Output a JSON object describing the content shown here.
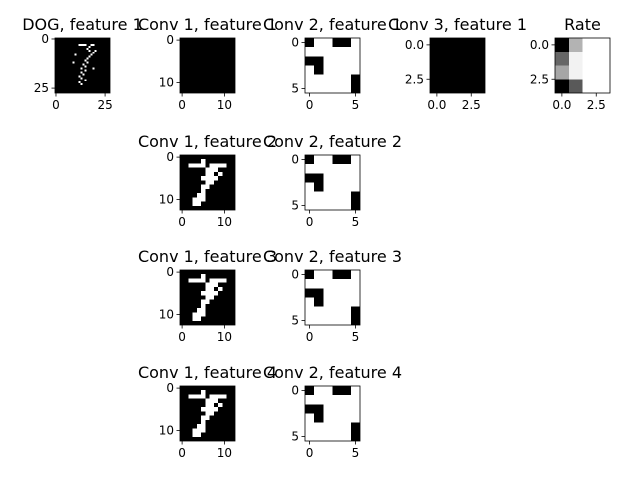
{
  "chart_data": [
    {
      "type": "heatmap",
      "title": "DOG, feature 1",
      "n": 28,
      "xticks": [
        0,
        25
      ],
      "yticks": [
        0,
        25
      ],
      "fill": {
        "type": "points",
        "bg": 0,
        "fg": 1,
        "points": [
          [
            0,
            3,
            12
          ],
          [
            0,
            3,
            13
          ],
          [
            0,
            3,
            14
          ],
          [
            0,
            3,
            15
          ],
          [
            0,
            3,
            18
          ],
          [
            0,
            3,
            19
          ],
          [
            1,
            4,
            17
          ],
          [
            1,
            5,
            16
          ],
          [
            1,
            6,
            17
          ],
          [
            1,
            7,
            19
          ],
          [
            1,
            8,
            18
          ],
          [
            1,
            9,
            17
          ],
          [
            1,
            10,
            16
          ],
          [
            1,
            11,
            15
          ],
          [
            1,
            12,
            16
          ],
          [
            1,
            13,
            14
          ],
          [
            1,
            14,
            15
          ],
          [
            1,
            15,
            13
          ],
          [
            1,
            16,
            15
          ],
          [
            1,
            17,
            13
          ],
          [
            1,
            18,
            14
          ],
          [
            1,
            19,
            12
          ],
          [
            1,
            20,
            13
          ],
          [
            1,
            21,
            15
          ],
          [
            1,
            22,
            12
          ],
          [
            1,
            23,
            13
          ],
          [
            2,
            6,
            20
          ],
          [
            2,
            8,
            10
          ],
          [
            2,
            12,
            9
          ],
          [
            2,
            15,
            19
          ]
        ]
      }
    },
    {
      "type": "heatmap",
      "title": "Conv 1, feature 1",
      "n": 13,
      "xticks": [
        0,
        10
      ],
      "yticks": [
        0,
        10
      ],
      "fill": {
        "type": "uniform",
        "value": 0
      }
    },
    {
      "type": "heatmap",
      "title": "Conv 2, feature 1",
      "n": 6,
      "xticks": [
        0,
        5
      ],
      "yticks": [
        0,
        5
      ],
      "fill": {
        "type": "grid",
        "rows": [
          "011001",
          "111111",
          "001111",
          "101111",
          "111110",
          "111110"
        ]
      }
    },
    {
      "type": "heatmap",
      "title": "Conv 3, feature 1",
      "n": 4,
      "xticks": [
        0.0,
        2.5
      ],
      "yticks": [
        0.0,
        2.5
      ],
      "fill": {
        "type": "uniform",
        "value": 0
      }
    },
    {
      "type": "heatmap",
      "title": "Rate",
      "n": 4,
      "xticks": [
        0.0,
        2.5
      ],
      "yticks": [
        0.0,
        2.5
      ],
      "fill": {
        "type": "levels",
        "rows": [
          [
            0.0,
            0.7,
            1,
            1
          ],
          [
            0.4,
            0.95,
            1,
            1
          ],
          [
            0.65,
            0.95,
            1,
            1
          ],
          [
            0.0,
            0.35,
            1,
            1
          ]
        ]
      }
    },
    {
      "type": "heatmap",
      "title": "Conv 1, feature 2",
      "n": 13,
      "xticks": [
        0,
        10
      ],
      "yticks": [
        0,
        10
      ],
      "fill": {
        "type": "grid",
        "rows": [
          "0000000000000",
          "0000010000000",
          "0011110111100",
          "0000001110000",
          "0000001101000",
          "0000011110000",
          "0000001100000",
          "0000011000000",
          "0000010000000",
          "0000110000000",
          "0001110000000",
          "0001100000000",
          "0000000000000"
        ]
      }
    },
    {
      "type": "heatmap",
      "title": "Conv 2, feature 2",
      "n": 6,
      "xticks": [
        0,
        5
      ],
      "yticks": [
        0,
        5
      ],
      "fill": {
        "type": "grid",
        "rows": [
          "011001",
          "111111",
          "001111",
          "101111",
          "111110",
          "111110"
        ]
      }
    },
    {
      "type": "heatmap",
      "title": "Conv 1, feature 3",
      "n": 13,
      "xticks": [
        0,
        10
      ],
      "yticks": [
        0,
        10
      ],
      "fill": {
        "type": "grid",
        "rows": [
          "0000000000000",
          "0000010000000",
          "0011110111100",
          "0000001110000",
          "0000001101000",
          "0000011110000",
          "0000001100000",
          "0000011000000",
          "0000010000000",
          "0000110000000",
          "0001110000000",
          "0001100000000",
          "0000000000000"
        ]
      }
    },
    {
      "type": "heatmap",
      "title": "Conv 2, feature 3",
      "n": 6,
      "xticks": [
        0,
        5
      ],
      "yticks": [
        0,
        5
      ],
      "fill": {
        "type": "grid",
        "rows": [
          "011001",
          "111111",
          "001111",
          "101111",
          "111110",
          "111110"
        ]
      }
    },
    {
      "type": "heatmap",
      "title": "Conv 1, feature 4",
      "n": 13,
      "xticks": [
        0,
        10
      ],
      "yticks": [
        0,
        10
      ],
      "fill": {
        "type": "grid",
        "rows": [
          "0000000000000",
          "0000010000000",
          "0011110111100",
          "0000001110000",
          "0000001101000",
          "0000011110000",
          "0000001100000",
          "0000011000000",
          "0000010000000",
          "0000110000000",
          "0001110000000",
          "0001100000000",
          "0000000000000"
        ]
      }
    },
    {
      "type": "heatmap",
      "title": "Conv 2, feature 4",
      "n": 6,
      "xticks": [
        0,
        5
      ],
      "yticks": [
        0,
        5
      ],
      "fill": {
        "type": "grid",
        "rows": [
          "011001",
          "111111",
          "001111",
          "101111",
          "111110",
          "111110"
        ]
      }
    }
  ]
}
